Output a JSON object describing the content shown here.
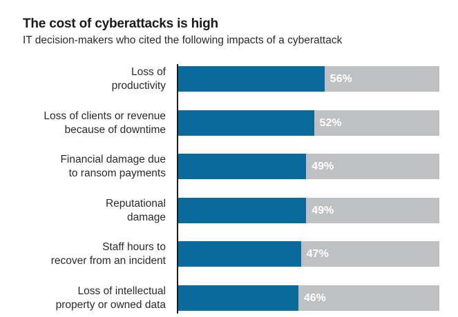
{
  "title": "The cost of cyberattacks is high",
  "subtitle": "IT decision-makers who cited the following impacts of a cyberattack",
  "colors": {
    "bar": "#0b6a9c",
    "track": "#bfc0c2",
    "axis": "#1a1a1a"
  },
  "chart_data": {
    "type": "bar",
    "orientation": "horizontal",
    "title": "The cost of cyberattacks is high",
    "subtitle": "IT decision-makers who cited the following impacts of a cyberattack",
    "categories": [
      [
        "Loss of",
        "productivity"
      ],
      [
        "Loss of clients or revenue",
        "because of downtime"
      ],
      [
        "Financial damage due",
        "to ransom payments"
      ],
      [
        "Reputational",
        "damage"
      ],
      [
        "Staff hours to",
        "recover from an incident"
      ],
      [
        "Loss of intellectual",
        "property or owned data"
      ]
    ],
    "values": [
      56,
      52,
      49,
      49,
      47,
      46
    ],
    "value_labels": [
      "56%",
      "52%",
      "49%",
      "49%",
      "47%",
      "46%"
    ],
    "unit": "%",
    "xlim": [
      0,
      100
    ],
    "grid": false,
    "legend": "none"
  }
}
